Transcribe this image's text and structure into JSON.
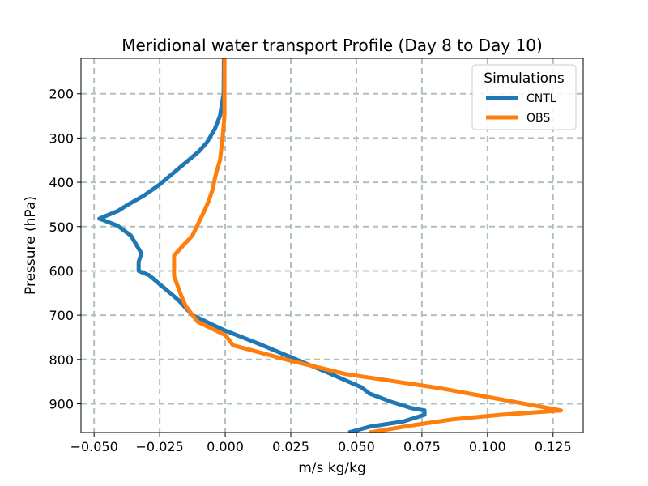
{
  "chart_data": {
    "type": "line",
    "title": "Meridional water transport Profile (Day 8 to Day 10)",
    "xlabel": "m/s kg/kg",
    "ylabel": "Pressure (hPa)",
    "xlim": [
      -0.055,
      0.1365
    ],
    "ylim": [
      965,
      120
    ],
    "y_inverted": true,
    "grid": true,
    "xticks": [
      -0.05,
      -0.025,
      0.0,
      0.025,
      0.05,
      0.075,
      0.1,
      0.125
    ],
    "xtick_labels": [
      "−0.050",
      "−0.025",
      "0.000",
      "0.025",
      "0.050",
      "0.075",
      "0.100",
      "0.125"
    ],
    "yticks": [
      200,
      300,
      400,
      500,
      600,
      700,
      800,
      900
    ],
    "ytick_labels": [
      "200",
      "300",
      "400",
      "500",
      "600",
      "700",
      "800",
      "900"
    ],
    "legend": {
      "title": "Simulations",
      "placement": "top-right"
    },
    "series": [
      {
        "name": "CNTL",
        "color": "#1f77b4",
        "points": [
          [
            -0.0005,
            120
          ],
          [
            -0.0006,
            200
          ],
          [
            -0.002,
            250
          ],
          [
            -0.004,
            280
          ],
          [
            -0.007,
            310
          ],
          [
            -0.01,
            330
          ],
          [
            -0.014,
            350
          ],
          [
            -0.019,
            375
          ],
          [
            -0.025,
            405
          ],
          [
            -0.031,
            430
          ],
          [
            -0.037,
            450
          ],
          [
            -0.041,
            465
          ],
          [
            -0.048,
            482
          ],
          [
            -0.041,
            498
          ],
          [
            -0.036,
            520
          ],
          [
            -0.032,
            560
          ],
          [
            -0.033,
            580
          ],
          [
            -0.033,
            600
          ],
          [
            -0.029,
            610
          ],
          [
            -0.025,
            630
          ],
          [
            -0.018,
            665
          ],
          [
            -0.0125,
            700
          ],
          [
            0.0,
            735
          ],
          [
            0.013,
            765
          ],
          [
            0.025,
            795
          ],
          [
            0.038,
            827
          ],
          [
            0.052,
            863
          ],
          [
            0.055,
            877
          ],
          [
            0.063,
            895
          ],
          [
            0.071,
            910
          ],
          [
            0.076,
            915
          ],
          [
            0.076,
            925
          ],
          [
            0.068,
            940
          ],
          [
            0.055,
            952
          ],
          [
            0.047,
            965
          ]
        ]
      },
      {
        "name": "OBS",
        "color": "#ff7f0e",
        "points": [
          [
            -0.0003,
            120
          ],
          [
            -0.0003,
            250
          ],
          [
            -0.001,
            300
          ],
          [
            -0.002,
            350
          ],
          [
            -0.0035,
            380
          ],
          [
            -0.005,
            420
          ],
          [
            -0.0065,
            445
          ],
          [
            -0.008,
            465
          ],
          [
            -0.0125,
            520
          ],
          [
            -0.0195,
            565
          ],
          [
            -0.0195,
            612
          ],
          [
            -0.0165,
            660
          ],
          [
            -0.015,
            680
          ],
          [
            -0.0105,
            715
          ],
          [
            0.0,
            745
          ],
          [
            0.003,
            768
          ],
          [
            0.025,
            803
          ],
          [
            0.046,
            833
          ],
          [
            0.082,
            865
          ],
          [
            0.105,
            890
          ],
          [
            0.128,
            915
          ],
          [
            0.105,
            925
          ],
          [
            0.087,
            935
          ],
          [
            0.07,
            950
          ],
          [
            0.055,
            965
          ]
        ]
      }
    ]
  }
}
